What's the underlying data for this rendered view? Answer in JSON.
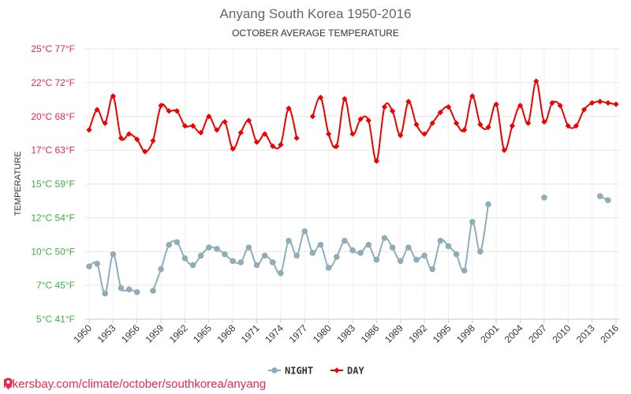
{
  "chart_data": {
    "type": "line",
    "title": "Anyang South Korea 1950-2016",
    "subtitle": "OCTOBER AVERAGE TEMPERATURE",
    "ylabel": "TEMPERATURE",
    "ylim": [
      5,
      25
    ],
    "xlim": [
      1950,
      2016
    ],
    "y_ticks": [
      {
        "value": 5,
        "c": "5°C",
        "f": "41°F",
        "color": "#3cb043"
      },
      {
        "value": 7.5,
        "c": "7°C",
        "f": "45°F",
        "color": "#3cb043"
      },
      {
        "value": 10,
        "c": "10°C",
        "f": "50°F",
        "color": "#3cb043"
      },
      {
        "value": 12.5,
        "c": "12°C",
        "f": "54°F",
        "color": "#3cb043"
      },
      {
        "value": 15,
        "c": "15°C",
        "f": "59°F",
        "color": "#3cb043"
      },
      {
        "value": 17.5,
        "c": "17°C",
        "f": "63°F",
        "color": "#e5294f"
      },
      {
        "value": 20,
        "c": "20°C",
        "f": "68°F",
        "color": "#e5294f"
      },
      {
        "value": 22.5,
        "c": "22°C",
        "f": "72°F",
        "color": "#e5294f"
      },
      {
        "value": 25,
        "c": "25°C",
        "f": "77°F",
        "color": "#e5294f"
      }
    ],
    "x_ticks": [
      "1950",
      "1953",
      "1956",
      "1959",
      "1962",
      "1965",
      "1968",
      "1971",
      "1974",
      "1977",
      "1980",
      "1983",
      "1986",
      "1989",
      "1992",
      "1995",
      "1998",
      "2001",
      "2004",
      "2007",
      "2010",
      "2013",
      "2016"
    ],
    "x": [
      1950,
      1951,
      1952,
      1953,
      1954,
      1955,
      1956,
      1957,
      1958,
      1959,
      1960,
      1961,
      1962,
      1963,
      1964,
      1965,
      1966,
      1967,
      1968,
      1969,
      1970,
      1971,
      1972,
      1973,
      1974,
      1975,
      1976,
      1977,
      1978,
      1979,
      1980,
      1981,
      1982,
      1983,
      1984,
      1985,
      1986,
      1987,
      1988,
      1989,
      1990,
      1991,
      1992,
      1993,
      1994,
      1995,
      1996,
      1997,
      1998,
      1999,
      2000,
      2001,
      2002,
      2003,
      2004,
      2005,
      2006,
      2007,
      2008,
      2009,
      2010,
      2011,
      2012,
      2013,
      2014,
      2015,
      2016
    ],
    "series": [
      {
        "name": "DAY",
        "color": "#ee0000",
        "values": [
          19.0,
          20.5,
          19.5,
          21.5,
          18.4,
          18.7,
          18.3,
          17.4,
          18.2,
          20.8,
          20.4,
          20.4,
          19.3,
          19.3,
          18.8,
          20.0,
          19.0,
          19.6,
          17.6,
          18.8,
          19.7,
          18.1,
          18.7,
          17.8,
          17.9,
          20.6,
          18.4,
          null,
          20.0,
          21.4,
          18.7,
          17.8,
          21.3,
          18.7,
          19.8,
          19.7,
          16.7,
          20.7,
          20.4,
          18.6,
          21.1,
          19.4,
          18.7,
          19.5,
          20.3,
          20.7,
          19.5,
          19.0,
          21.5,
          19.4,
          19.2,
          20.9,
          17.5,
          19.3,
          20.8,
          19.5,
          22.6,
          19.6,
          21.0,
          20.8,
          19.3,
          19.3,
          20.5,
          21.0,
          21.1,
          21.0,
          20.9
        ]
      },
      {
        "name": "NIGHT",
        "color": "#8fadb8",
        "values": [
          8.9,
          9.1,
          6.9,
          9.8,
          7.3,
          7.2,
          7.0,
          null,
          7.1,
          8.7,
          10.5,
          10.7,
          9.5,
          9.0,
          9.7,
          10.3,
          10.2,
          9.8,
          9.3,
          9.2,
          10.3,
          9.0,
          9.7,
          9.2,
          8.4,
          10.8,
          9.7,
          11.5,
          9.9,
          10.5,
          8.8,
          9.6,
          10.8,
          10.1,
          9.9,
          10.5,
          9.4,
          11.0,
          10.3,
          9.3,
          10.3,
          9.4,
          9.7,
          8.7,
          10.8,
          10.4,
          9.8,
          8.6,
          12.2,
          10.0,
          13.5,
          null,
          null,
          null,
          null,
          null,
          null,
          14.0,
          null,
          null,
          null,
          null,
          null,
          null,
          14.1,
          13.8,
          null
        ]
      }
    ],
    "legend": [
      "NIGHT",
      "DAY"
    ],
    "legend_position": "bottom-center",
    "grid": true
  },
  "footer": {
    "url_text": "hikersbay.com/climate/october/southkorea/anyang",
    "icon": "map-pin-icon"
  }
}
